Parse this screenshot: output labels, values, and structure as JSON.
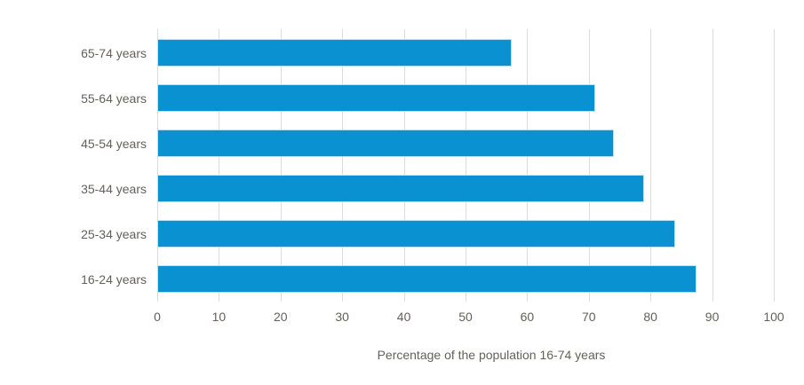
{
  "chart_data": {
    "type": "bar",
    "orientation": "horizontal",
    "categories": [
      "65-74 years",
      "55-64 years",
      "45-54 years",
      "35-44 years",
      "25-34 years",
      "16-24 years"
    ],
    "values": [
      57.5,
      71,
      74,
      79,
      84,
      87.5
    ],
    "title": "",
    "xlabel": "Percentage of the population 16-74 years",
    "ylabel": "",
    "xlim": [
      0,
      100
    ],
    "xticks": [
      0,
      10,
      20,
      30,
      40,
      50,
      60,
      70,
      80,
      90,
      100
    ],
    "grid": "vertical-only",
    "legend": "none",
    "bar_color": "#0a91d2",
    "bar_stroke_color": "#b9e0f5",
    "gridline_color": "#dcdcdc",
    "text_color": "#63615b",
    "background_color": "#ffffff"
  }
}
